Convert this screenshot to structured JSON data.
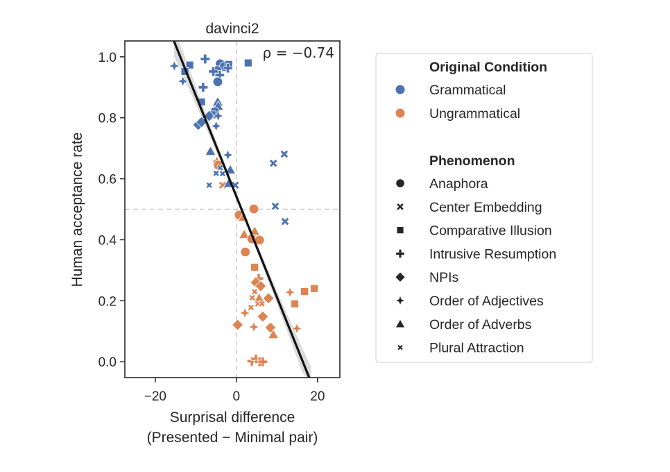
{
  "chart_data": {
    "type": "scatter",
    "title": "davinci2",
    "xlabel_line1": "Surprisal difference",
    "xlabel_line2": "(Presented − Minimal pair)",
    "ylabel": "Human acceptance rate",
    "xlim": [
      -27.5,
      25.5
    ],
    "ylim": [
      -0.052,
      1.052
    ],
    "xticks": [
      -20,
      0,
      20
    ],
    "xtick_labels": [
      "−20",
      "0",
      "20"
    ],
    "yticks": [
      0.0,
      0.2,
      0.4,
      0.6,
      0.8,
      1.0
    ],
    "ytick_labels": [
      "0.0",
      "0.2",
      "0.4",
      "0.6",
      "0.8",
      "1.0"
    ],
    "reference_lines": {
      "x": 0,
      "y": 0.5
    },
    "annotation": "ρ = −0.74",
    "regression": {
      "slope": -0.0331,
      "intercept": 0.542,
      "x_range": [
        -15.4,
        18.4
      ],
      "ci_halfwidth_center": 0.012,
      "ci_halfwidth_edge": 0.05
    },
    "colors": {
      "Grammatical": "#4C72B0",
      "Ungrammatical": "#DD8452"
    },
    "legend": {
      "placement": "right-outside",
      "hue_title": "Original Condition",
      "hue_entries": [
        "Grammatical",
        "Ungrammatical"
      ],
      "style_title": "Phenomenon",
      "style_entries": [
        {
          "label": "Anaphora",
          "marker": "circle"
        },
        {
          "label": "Center Embedding",
          "marker": "x"
        },
        {
          "label": "Comparative Illusion",
          "marker": "square"
        },
        {
          "label": "Intrusive Resumption",
          "marker": "plus"
        },
        {
          "label": "NPIs",
          "marker": "diamond"
        },
        {
          "label": "Order of Adjectives",
          "marker": "star4"
        },
        {
          "label": "Order of Adverbs",
          "marker": "triangle"
        },
        {
          "label": "Plural Attraction",
          "marker": "smallx"
        }
      ]
    },
    "points": [
      {
        "x": -15.3,
        "y": 0.97,
        "cond": "Grammatical",
        "phen": "Order of Adjectives"
      },
      {
        "x": -11.5,
        "y": 0.973,
        "cond": "Grammatical",
        "phen": "Comparative Illusion"
      },
      {
        "x": -12.7,
        "y": 0.952,
        "cond": "Grammatical",
        "phen": "Comparative Illusion"
      },
      {
        "x": -7.7,
        "y": 0.993,
        "cond": "Grammatical",
        "phen": "Intrusive Resumption"
      },
      {
        "x": -13.2,
        "y": 0.92,
        "cond": "Grammatical",
        "phen": "Order of Adjectives"
      },
      {
        "x": -8.2,
        "y": 0.9,
        "cond": "Grammatical",
        "phen": "Intrusive Resumption"
      },
      {
        "x": -4.0,
        "y": 0.977,
        "cond": "Grammatical",
        "phen": "Anaphora"
      },
      {
        "x": -3.0,
        "y": 0.968,
        "cond": "Grammatical",
        "phen": "Anaphora"
      },
      {
        "x": -1.9,
        "y": 0.975,
        "cond": "Grammatical",
        "phen": "Comparative Illusion"
      },
      {
        "x": -4.8,
        "y": 0.955,
        "cond": "Grammatical",
        "phen": "Anaphora"
      },
      {
        "x": -2.1,
        "y": 0.963,
        "cond": "Grammatical",
        "phen": "Intrusive Resumption"
      },
      {
        "x": -5.7,
        "y": 0.952,
        "cond": "Grammatical",
        "phen": "Intrusive Resumption"
      },
      {
        "x": -4.1,
        "y": 0.94,
        "cond": "Grammatical",
        "phen": "Intrusive Resumption"
      },
      {
        "x": -4.6,
        "y": 0.918,
        "cond": "Grammatical",
        "phen": "Anaphora"
      },
      {
        "x": 2.9,
        "y": 0.98,
        "cond": "Grammatical",
        "phen": "Comparative Illusion"
      },
      {
        "x": -8.6,
        "y": 0.852,
        "cond": "Grammatical",
        "phen": "Comparative Illusion"
      },
      {
        "x": -4.6,
        "y": 0.852,
        "cond": "Grammatical",
        "phen": "Order of Adverbs"
      },
      {
        "x": -4.5,
        "y": 0.838,
        "cond": "Grammatical",
        "phen": "Order of Adverbs"
      },
      {
        "x": -5.3,
        "y": 0.82,
        "cond": "Grammatical",
        "phen": "Anaphora"
      },
      {
        "x": -6.0,
        "y": 0.81,
        "cond": "Grammatical",
        "phen": "Comparative Illusion"
      },
      {
        "x": -6.7,
        "y": 0.806,
        "cond": "Grammatical",
        "phen": "NPIs"
      },
      {
        "x": -4.5,
        "y": 0.806,
        "cond": "Grammatical",
        "phen": "Order of Adjectives"
      },
      {
        "x": -9.4,
        "y": 0.777,
        "cond": "Grammatical",
        "phen": "NPIs"
      },
      {
        "x": -8.6,
        "y": 0.786,
        "cond": "Grammatical",
        "phen": "NPIs"
      },
      {
        "x": -5.0,
        "y": 0.773,
        "cond": "Grammatical",
        "phen": "Order of Adjectives"
      },
      {
        "x": -6.4,
        "y": 0.69,
        "cond": "Grammatical",
        "phen": "Order of Adverbs"
      },
      {
        "x": -2.1,
        "y": 0.678,
        "cond": "Grammatical",
        "phen": "Order of Adjectives"
      },
      {
        "x": -4.8,
        "y": 0.658,
        "cond": "Ungrammatical",
        "phen": "Order of Adjectives"
      },
      {
        "x": -4.5,
        "y": 0.645,
        "cond": "Ungrammatical",
        "phen": "Anaphora"
      },
      {
        "x": -4.0,
        "y": 0.636,
        "cond": "Grammatical",
        "phen": "Plural Attraction"
      },
      {
        "x": -1.5,
        "y": 0.629,
        "cond": "Grammatical",
        "phen": "Order of Adverbs"
      },
      {
        "x": -4.9,
        "y": 0.619,
        "cond": "Ungrammatical",
        "phen": "Plural Attraction"
      },
      {
        "x": -5.0,
        "y": 0.618,
        "cond": "Grammatical",
        "phen": "Plural Attraction"
      },
      {
        "x": -3.4,
        "y": 0.617,
        "cond": "Grammatical",
        "phen": "Plural Attraction"
      },
      {
        "x": -6.7,
        "y": 0.579,
        "cond": "Grammatical",
        "phen": "Plural Attraction"
      },
      {
        "x": -3.4,
        "y": 0.579,
        "cond": "Ungrammatical",
        "phen": "Center Embedding"
      },
      {
        "x": -1.9,
        "y": 0.585,
        "cond": "Grammatical",
        "phen": "Order of Adverbs"
      },
      {
        "x": -0.3,
        "y": 0.579,
        "cond": "Grammatical",
        "phen": "Center Embedding"
      },
      {
        "x": 11.8,
        "y": 0.681,
        "cond": "Grammatical",
        "phen": "Center Embedding"
      },
      {
        "x": 9.1,
        "y": 0.651,
        "cond": "Grammatical",
        "phen": "Center Embedding"
      },
      {
        "x": 9.6,
        "y": 0.51,
        "cond": "Grammatical",
        "phen": "Center Embedding"
      },
      {
        "x": 12.0,
        "y": 0.46,
        "cond": "Grammatical",
        "phen": "Center Embedding"
      },
      {
        "x": 4.3,
        "y": 0.501,
        "cond": "Ungrammatical",
        "phen": "Anaphora"
      },
      {
        "x": 0.7,
        "y": 0.481,
        "cond": "Ungrammatical",
        "phen": "Anaphora"
      },
      {
        "x": 1.7,
        "y": 0.474,
        "cond": "Ungrammatical",
        "phen": "Order of Adverbs"
      },
      {
        "x": 1.9,
        "y": 0.417,
        "cond": "Ungrammatical",
        "phen": "Order of Adverbs"
      },
      {
        "x": 4.5,
        "y": 0.428,
        "cond": "Ungrammatical",
        "phen": "Order of Adverbs"
      },
      {
        "x": 3.8,
        "y": 0.403,
        "cond": "Ungrammatical",
        "phen": "Anaphora"
      },
      {
        "x": 5.7,
        "y": 0.399,
        "cond": "Ungrammatical",
        "phen": "Anaphora"
      },
      {
        "x": 2.2,
        "y": 0.36,
        "cond": "Ungrammatical",
        "phen": "Anaphora"
      },
      {
        "x": 4.5,
        "y": 0.31,
        "cond": "Ungrammatical",
        "phen": "Comparative Illusion"
      },
      {
        "x": 5.5,
        "y": 0.273,
        "cond": "Ungrammatical",
        "phen": "Intrusive Resumption"
      },
      {
        "x": 4.8,
        "y": 0.26,
        "cond": "Ungrammatical",
        "phen": "NPIs"
      },
      {
        "x": 6.0,
        "y": 0.248,
        "cond": "Ungrammatical",
        "phen": "NPIs"
      },
      {
        "x": 4.5,
        "y": 0.23,
        "cond": "Ungrammatical",
        "phen": "Plural Attraction"
      },
      {
        "x": 13.2,
        "y": 0.228,
        "cond": "Ungrammatical",
        "phen": "Order of Adjectives"
      },
      {
        "x": 16.8,
        "y": 0.23,
        "cond": "Ungrammatical",
        "phen": "Comparative Illusion"
      },
      {
        "x": 19.2,
        "y": 0.24,
        "cond": "Ungrammatical",
        "phen": "Comparative Illusion"
      },
      {
        "x": 3.9,
        "y": 0.21,
        "cond": "Ungrammatical",
        "phen": "Plural Attraction"
      },
      {
        "x": 5.6,
        "y": 0.208,
        "cond": "Ungrammatical",
        "phen": "Order of Adverbs"
      },
      {
        "x": 7.9,
        "y": 0.208,
        "cond": "Ungrammatical",
        "phen": "NPIs"
      },
      {
        "x": 5.3,
        "y": 0.19,
        "cond": "Ungrammatical",
        "phen": "Plural Attraction"
      },
      {
        "x": 6.3,
        "y": 0.19,
        "cond": "Ungrammatical",
        "phen": "Plural Attraction"
      },
      {
        "x": 3.6,
        "y": 0.178,
        "cond": "Ungrammatical",
        "phen": "Plural Attraction"
      },
      {
        "x": 14.4,
        "y": 0.19,
        "cond": "Ungrammatical",
        "phen": "Comparative Illusion"
      },
      {
        "x": 2.1,
        "y": 0.16,
        "cond": "Ungrammatical",
        "phen": "Order of Adjectives"
      },
      {
        "x": 6.5,
        "y": 0.148,
        "cond": "Ungrammatical",
        "phen": "NPIs"
      },
      {
        "x": 0.3,
        "y": 0.121,
        "cond": "Ungrammatical",
        "phen": "NPIs"
      },
      {
        "x": 4.3,
        "y": 0.114,
        "cond": "Ungrammatical",
        "phen": "Order of Adjectives"
      },
      {
        "x": 8.4,
        "y": 0.112,
        "cond": "Ungrammatical",
        "phen": "NPIs"
      },
      {
        "x": 14.9,
        "y": 0.109,
        "cond": "Ungrammatical",
        "phen": "Order of Adjectives"
      },
      {
        "x": 9.1,
        "y": 0.089,
        "cond": "Ungrammatical",
        "phen": "Order of Adverbs"
      },
      {
        "x": 3.8,
        "y": 0.002,
        "cond": "Ungrammatical",
        "phen": "Intrusive Resumption"
      },
      {
        "x": 4.8,
        "y": 0.009,
        "cond": "Ungrammatical",
        "phen": "Intrusive Resumption"
      },
      {
        "x": 5.7,
        "y": 0.0,
        "cond": "Ungrammatical",
        "phen": "Intrusive Resumption"
      },
      {
        "x": 6.5,
        "y": 0.0,
        "cond": "Ungrammatical",
        "phen": "Intrusive Resumption"
      }
    ]
  }
}
